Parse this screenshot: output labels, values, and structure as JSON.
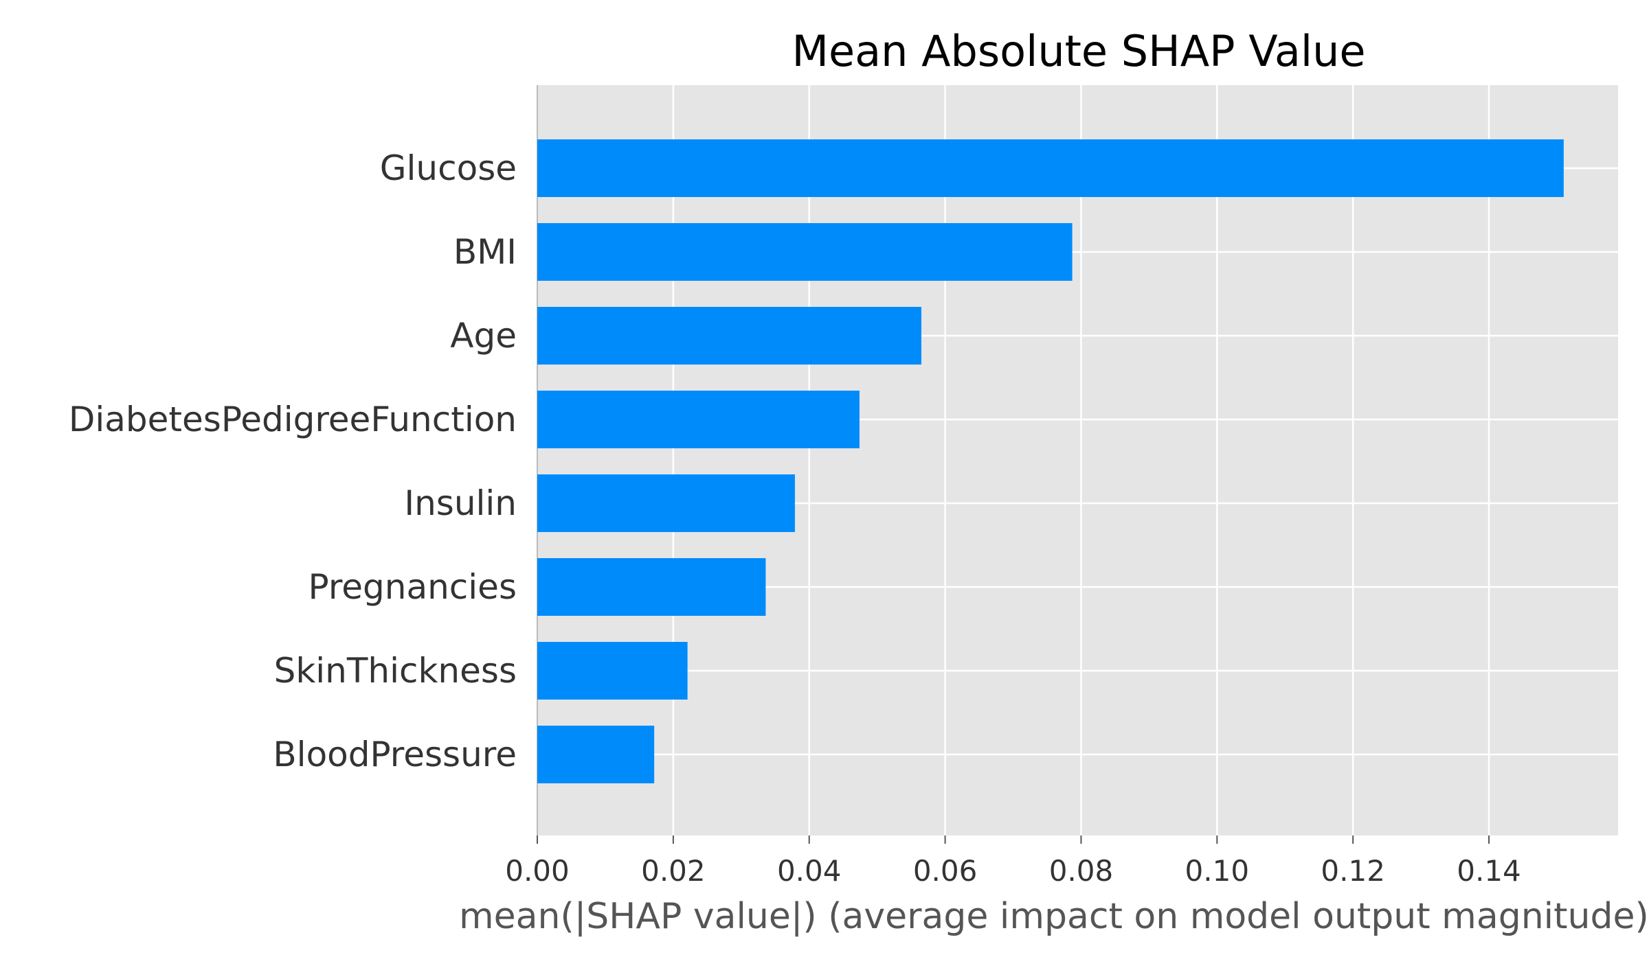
{
  "chart_data": {
    "type": "bar",
    "orientation": "horizontal",
    "title": "Mean Absolute SHAP Value",
    "xlabel": "mean(|SHAP value|) (average impact on model output magnitude)",
    "ylabel": "",
    "categories": [
      "Glucose",
      "BMI",
      "Age",
      "DiabetesPedigreeFunction",
      "Insulin",
      "Pregnancies",
      "SkinThickness",
      "BloodPressure"
    ],
    "values": [
      0.151,
      0.0787,
      0.0565,
      0.0474,
      0.0379,
      0.0336,
      0.0221,
      0.0172
    ],
    "xlim": [
      0,
      0.159
    ],
    "xticks": [
      "0.00",
      "0.02",
      "0.04",
      "0.06",
      "0.08",
      "0.10",
      "0.12",
      "0.14"
    ],
    "grid": true,
    "bar_color": "#008bfb",
    "background_color": "#e5e5e5",
    "grid_color": "#ffffff"
  }
}
